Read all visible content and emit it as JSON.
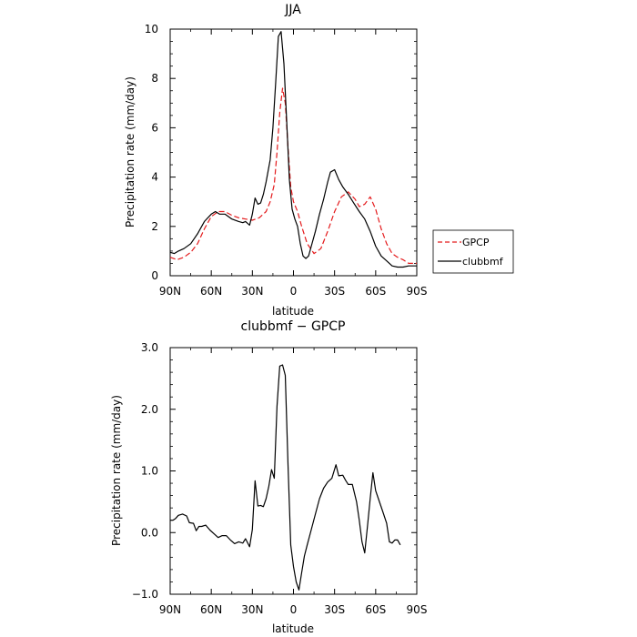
{
  "chart_data": [
    {
      "type": "line",
      "title": "JJA",
      "xlabel": "latitude",
      "ylabel": "Precipitation rate (mm/day)",
      "xlim": [
        -90,
        90
      ],
      "ylim": [
        0,
        10
      ],
      "xtick_values": [
        -90,
        -60,
        -30,
        0,
        30,
        60,
        90
      ],
      "xtick_labels": [
        "90N",
        "60N",
        "30N",
        "0",
        "30S",
        "60S",
        "90S"
      ],
      "ytick_values": [
        0,
        2,
        4,
        6,
        8,
        10
      ],
      "ytick_labels": [
        "0",
        "2",
        "4",
        "6",
        "8",
        "10"
      ],
      "grid": false,
      "legend_position": "right",
      "series": [
        {
          "name": "GPCP",
          "color": "#e41a1c",
          "dash": "dashed",
          "points": [
            [
              -90,
              0.75
            ],
            [
              -85,
              0.65
            ],
            [
              -80,
              0.75
            ],
            [
              -75,
              0.95
            ],
            [
              -70,
              1.3
            ],
            [
              -65,
              1.9
            ],
            [
              -60,
              2.4
            ],
            [
              -55,
              2.6
            ],
            [
              -50,
              2.6
            ],
            [
              -45,
              2.45
            ],
            [
              -40,
              2.35
            ],
            [
              -35,
              2.3
            ],
            [
              -30,
              2.25
            ],
            [
              -25,
              2.35
            ],
            [
              -20,
              2.6
            ],
            [
              -17,
              3.0
            ],
            [
              -14,
              3.7
            ],
            [
              -12,
              5.0
            ],
            [
              -10,
              6.6
            ],
            [
              -8,
              7.6
            ],
            [
              -6,
              7.0
            ],
            [
              -4,
              5.2
            ],
            [
              -2,
              3.6
            ],
            [
              0,
              3.0
            ],
            [
              3,
              2.6
            ],
            [
              6,
              2.0
            ],
            [
              10,
              1.3
            ],
            [
              15,
              0.9
            ],
            [
              20,
              1.1
            ],
            [
              25,
              1.8
            ],
            [
              30,
              2.6
            ],
            [
              35,
              3.2
            ],
            [
              40,
              3.4
            ],
            [
              45,
              3.1
            ],
            [
              48,
              2.8
            ],
            [
              52,
              2.9
            ],
            [
              56,
              3.2
            ],
            [
              60,
              2.7
            ],
            [
              64,
              1.9
            ],
            [
              68,
              1.3
            ],
            [
              72,
              0.9
            ],
            [
              76,
              0.75
            ],
            [
              80,
              0.65
            ],
            [
              84,
              0.5
            ],
            [
              90,
              0.5
            ]
          ]
        },
        {
          "name": "clubbmf",
          "color": "#000000",
          "dash": "solid",
          "points": [
            [
              -90,
              0.95
            ],
            [
              -87,
              0.9
            ],
            [
              -84,
              1.0
            ],
            [
              -80,
              1.1
            ],
            [
              -75,
              1.3
            ],
            [
              -70,
              1.7
            ],
            [
              -65,
              2.2
            ],
            [
              -60,
              2.5
            ],
            [
              -57,
              2.6
            ],
            [
              -54,
              2.5
            ],
            [
              -50,
              2.5
            ],
            [
              -45,
              2.3
            ],
            [
              -40,
              2.2
            ],
            [
              -37,
              2.15
            ],
            [
              -35,
              2.2
            ],
            [
              -32,
              2.05
            ],
            [
              -30,
              2.5
            ],
            [
              -28,
              3.15
            ],
            [
              -26,
              2.9
            ],
            [
              -24,
              2.95
            ],
            [
              -22,
              3.3
            ],
            [
              -20,
              3.8
            ],
            [
              -17,
              4.7
            ],
            [
              -15,
              6.0
            ],
            [
              -13,
              7.8
            ],
            [
              -11,
              9.7
            ],
            [
              -9,
              9.9
            ],
            [
              -7,
              8.6
            ],
            [
              -5,
              6.3
            ],
            [
              -3,
              3.9
            ],
            [
              -1,
              2.7
            ],
            [
              1,
              2.3
            ],
            [
              3,
              2.0
            ],
            [
              5,
              1.3
            ],
            [
              7,
              0.8
            ],
            [
              9,
              0.7
            ],
            [
              11,
              0.8
            ],
            [
              13,
              1.2
            ],
            [
              16,
              1.8
            ],
            [
              19,
              2.5
            ],
            [
              22,
              3.1
            ],
            [
              25,
              3.8
            ],
            [
              27,
              4.2
            ],
            [
              30,
              4.3
            ],
            [
              33,
              3.9
            ],
            [
              36,
              3.6
            ],
            [
              40,
              3.3
            ],
            [
              44,
              2.95
            ],
            [
              48,
              2.6
            ],
            [
              52,
              2.3
            ],
            [
              56,
              1.8
            ],
            [
              60,
              1.2
            ],
            [
              64,
              0.8
            ],
            [
              68,
              0.6
            ],
            [
              72,
              0.4
            ],
            [
              76,
              0.35
            ],
            [
              80,
              0.35
            ],
            [
              84,
              0.4
            ],
            [
              90,
              0.4
            ]
          ]
        }
      ]
    },
    {
      "type": "line",
      "title": "clubbmf − GPCP",
      "xlabel": "latitude",
      "ylabel": "Precipitation rate (mm/day)",
      "xlim": [
        -90,
        90
      ],
      "ylim": [
        -1,
        3
      ],
      "xtick_values": [
        -90,
        -60,
        -30,
        0,
        30,
        60,
        90
      ],
      "xtick_labels": [
        "90N",
        "60N",
        "30N",
        "0",
        "30S",
        "60S",
        "90S"
      ],
      "ytick_values": [
        -1,
        0,
        1,
        2,
        3
      ],
      "ytick_labels": [
        "−1.0",
        "0.0",
        "1.0",
        "2.0",
        "3.0"
      ],
      "grid": false,
      "series": [
        {
          "color": "#000000",
          "dash": "solid",
          "points": [
            [
              -90,
              0.2
            ],
            [
              -88,
              0.2
            ],
            [
              -86,
              0.23
            ],
            [
              -84,
              0.28
            ],
            [
              -81,
              0.3
            ],
            [
              -78,
              0.27
            ],
            [
              -76,
              0.16
            ],
            [
              -73,
              0.15
            ],
            [
              -71,
              0.03
            ],
            [
              -69,
              0.1
            ],
            [
              -67,
              0.1
            ],
            [
              -64,
              0.12
            ],
            [
              -61,
              0.04
            ],
            [
              -58,
              -0.02
            ],
            [
              -55,
              -0.08
            ],
            [
              -52,
              -0.05
            ],
            [
              -49,
              -0.05
            ],
            [
              -46,
              -0.12
            ],
            [
              -43,
              -0.18
            ],
            [
              -40,
              -0.15
            ],
            [
              -37,
              -0.17
            ],
            [
              -35,
              -0.1
            ],
            [
              -32,
              -0.23
            ],
            [
              -30,
              0.05
            ],
            [
              -28,
              0.84
            ],
            [
              -26,
              0.43
            ],
            [
              -24,
              0.44
            ],
            [
              -22,
              0.42
            ],
            [
              -20,
              0.55
            ],
            [
              -18,
              0.75
            ],
            [
              -16,
              1.02
            ],
            [
              -14,
              0.88
            ],
            [
              -12,
              2.05
            ],
            [
              -10,
              2.7
            ],
            [
              -8,
              2.72
            ],
            [
              -6,
              2.55
            ],
            [
              -4,
              1.1
            ],
            [
              -2,
              -0.2
            ],
            [
              0,
              -0.55
            ],
            [
              2,
              -0.8
            ],
            [
              4,
              -0.93
            ],
            [
              6,
              -0.65
            ],
            [
              8,
              -0.38
            ],
            [
              10,
              -0.2
            ],
            [
              13,
              0.05
            ],
            [
              16,
              0.3
            ],
            [
              19,
              0.55
            ],
            [
              22,
              0.72
            ],
            [
              25,
              0.82
            ],
            [
              28,
              0.88
            ],
            [
              31,
              1.1
            ],
            [
              33,
              0.92
            ],
            [
              36,
              0.93
            ],
            [
              38,
              0.85
            ],
            [
              40,
              0.78
            ],
            [
              43,
              0.78
            ],
            [
              46,
              0.5
            ],
            [
              48,
              0.2
            ],
            [
              50,
              -0.15
            ],
            [
              52,
              -0.33
            ],
            [
              54,
              0.1
            ],
            [
              56,
              0.55
            ],
            [
              58,
              0.97
            ],
            [
              60,
              0.68
            ],
            [
              62,
              0.55
            ],
            [
              65,
              0.35
            ],
            [
              68,
              0.15
            ],
            [
              70,
              -0.15
            ],
            [
              72,
              -0.17
            ],
            [
              74,
              -0.12
            ],
            [
              76,
              -0.12
            ],
            [
              78,
              -0.2
            ]
          ]
        }
      ]
    }
  ]
}
